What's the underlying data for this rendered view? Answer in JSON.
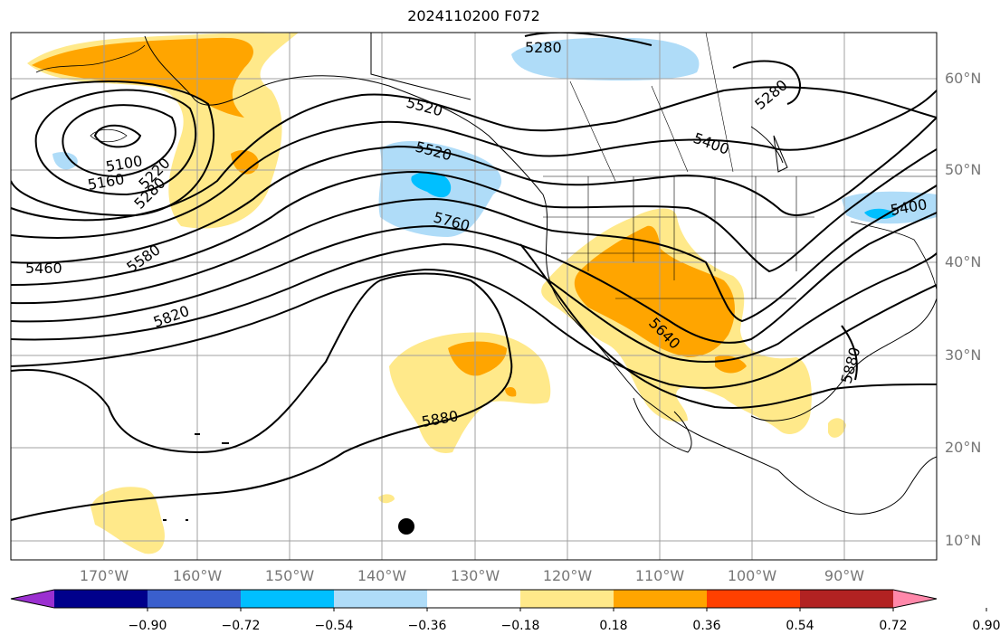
{
  "title": "2024110200 F072",
  "map": {
    "lon_range": [
      -180,
      -80
    ],
    "lat_range": [
      8,
      65
    ],
    "lat_ticks": [
      "60°N",
      "50°N",
      "40°N",
      "30°N",
      "20°N",
      "10°N"
    ],
    "lon_ticks": [
      "170°W",
      "160°W",
      "150°W",
      "140°W",
      "130°W",
      "120°W",
      "110°W",
      "100°W",
      "90°W"
    ],
    "contour_labels": [
      "5100",
      "5160",
      "5220",
      "5280",
      "5280",
      "5280",
      "5400",
      "5460",
      "5520",
      "5520",
      "5580",
      "5640",
      "5760",
      "5820",
      "5880",
      "5880",
      "5400"
    ]
  },
  "colorbar": {
    "ticks": [
      "−0.90",
      "−0.72",
      "−0.54",
      "−0.36",
      "−0.18",
      "0.18",
      "0.36",
      "0.54",
      "0.72",
      "0.90"
    ],
    "colors": [
      "#9b30d0",
      "#00008b",
      "#3a5fcd",
      "#00bfff",
      "#afdcf8",
      "#ffffff",
      "#ffe98a",
      "#ffa500",
      "#ff4000",
      "#b22222",
      "#ff88aa"
    ]
  }
}
